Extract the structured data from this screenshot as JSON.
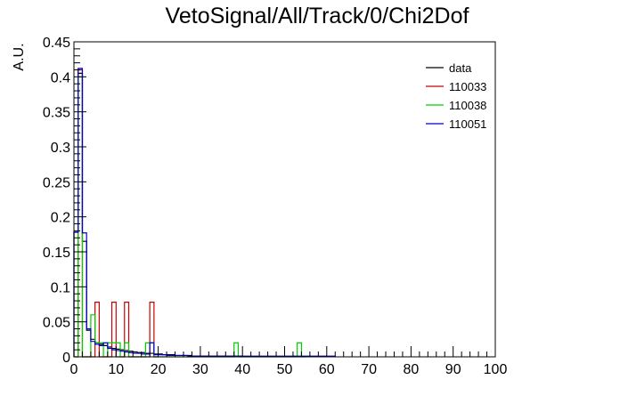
{
  "chart_data": {
    "type": "histogram",
    "title": "VetoSignal/All/Track/0/Chi2Dof",
    "xlabel": "",
    "ylabel": "A.U.",
    "xlim": [
      0,
      100
    ],
    "ylim": [
      0,
      0.45
    ],
    "bin_width": 1,
    "grid": false,
    "legend_position": "top-right",
    "x_ticks": [
      0,
      10,
      20,
      30,
      40,
      50,
      60,
      70,
      80,
      90,
      100
    ],
    "x_tick_labels": [
      "0",
      "10",
      "20",
      "30",
      "40",
      "50",
      "60",
      "70",
      "80",
      "90",
      "100"
    ],
    "y_ticks": [
      0,
      0.05,
      0.1,
      0.15,
      0.2,
      0.25,
      0.3,
      0.35,
      0.4,
      0.45
    ],
    "y_tick_labels": [
      "0",
      "0.05",
      "0.1",
      "0.15",
      "0.2",
      "0.25",
      "0.3",
      "0.35",
      "0.4",
      "0.45"
    ],
    "series": [
      {
        "name": "data",
        "color": "#000000",
        "values": [
          0.178,
          0.405,
          0.165,
          0.038,
          0.025,
          0.02,
          0.018,
          0.016,
          0.014,
          0.012,
          0.011,
          0.01,
          0.009,
          0.008,
          0.007,
          0.006,
          0.006,
          0.005,
          0.005,
          0.004,
          0.004,
          0.003,
          0.003,
          0.003,
          0.002,
          0.002,
          0.002,
          0.002,
          0.001,
          0.001,
          0.001,
          0.001,
          0.001,
          0.001,
          0.001,
          0.001,
          0.001,
          0.001,
          0.001,
          0.001
        ]
      },
      {
        "name": "110033",
        "color": "#cc0000",
        "values": [
          0.0,
          0.41,
          0.0,
          0.0,
          0.0,
          0.078,
          0.0,
          0.0,
          0.0,
          0.078,
          0.0,
          0.0,
          0.078,
          0.0,
          0.0,
          0.0,
          0.0,
          0.0,
          0.078,
          0.0
        ]
      },
      {
        "name": "110038",
        "color": "#00cc00",
        "values": [
          0.0,
          0.4,
          0.0,
          0.0,
          0.06,
          0.02,
          0.02,
          0.0,
          0.02,
          0.02,
          0.02,
          0.0,
          0.02,
          0.0,
          0.0,
          0.0,
          0.0,
          0.02,
          0.02,
          0.0,
          0.0,
          0.0,
          0.0,
          0.0,
          0.0,
          0.0,
          0.0,
          0.0,
          0.0,
          0.0,
          0.0,
          0.0,
          0.0,
          0.0,
          0.0,
          0.0,
          0.0,
          0.0,
          0.02,
          0.0,
          0.0,
          0.0,
          0.0,
          0.0,
          0.0,
          0.0,
          0.0,
          0.0,
          0.0,
          0.0,
          0.0,
          0.0,
          0.0,
          0.02,
          0.0
        ]
      },
      {
        "name": "110051",
        "color": "#0000cc",
        "values": [
          0.178,
          0.412,
          0.177,
          0.04,
          0.022,
          0.018,
          0.016,
          0.02,
          0.012,
          0.01,
          0.009,
          0.008,
          0.007,
          0.006,
          0.005,
          0.005,
          0.004,
          0.004,
          0.02,
          0.003,
          0.003,
          0.003,
          0.002,
          0.002,
          0.002,
          0.002,
          0.002,
          0.001,
          0.001,
          0.001,
          0.001,
          0.001,
          0.001,
          0.001,
          0.001,
          0.001,
          0.001,
          0.001,
          0.001,
          0.001,
          0.001,
          0.001,
          0.001,
          0.001,
          0.001,
          0.001,
          0.001,
          0.001,
          0.001,
          0.001,
          0.001,
          0.001,
          0.001,
          0.001,
          0.001,
          0.001,
          0.001,
          0.001,
          0.001,
          0.001,
          0.001,
          0.001
        ]
      }
    ]
  }
}
